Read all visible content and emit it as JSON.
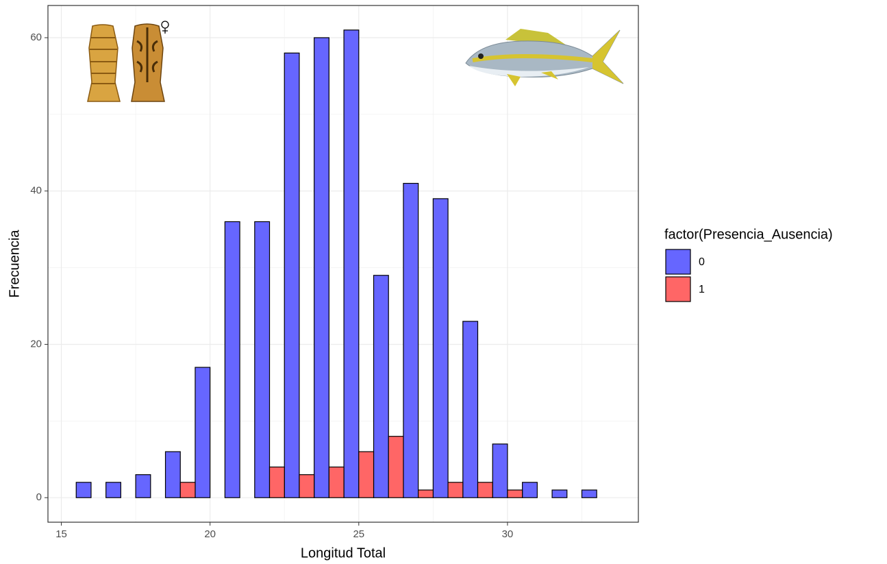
{
  "chart_data": {
    "type": "histogram",
    "x_label": "Longitud Total",
    "y_label": "Frecuencia",
    "legend_title": "factor(Presencia_Ausencia)",
    "bins": [
      15.5,
      16.5,
      17.5,
      18.5,
      19.5,
      20.5,
      21.5,
      22.5,
      23.5,
      24.5,
      25.5,
      26.5,
      27.5,
      28.5,
      29.5,
      30.5,
      31.5,
      32.5,
      33.5
    ],
    "series": [
      {
        "name": "0",
        "color": "#6666ff",
        "values": [
          2,
          2,
          3,
          6,
          17,
          36,
          36,
          58,
          60,
          61,
          29,
          41,
          39,
          23,
          7,
          2,
          1,
          1
        ]
      },
      {
        "name": "1",
        "color": "#ff6666",
        "values": [
          0,
          0,
          0,
          2,
          0,
          0,
          4,
          3,
          4,
          6,
          8,
          1,
          2,
          2,
          1,
          0,
          0,
          0
        ]
      }
    ],
    "xlim": [
      14.55,
      34.4
    ],
    "ylim": [
      -3.2,
      64.2
    ],
    "xticks": [
      15,
      20,
      25,
      30
    ],
    "yticks": [
      0,
      20,
      40,
      60
    ],
    "grid": true,
    "legend_position": "right"
  }
}
